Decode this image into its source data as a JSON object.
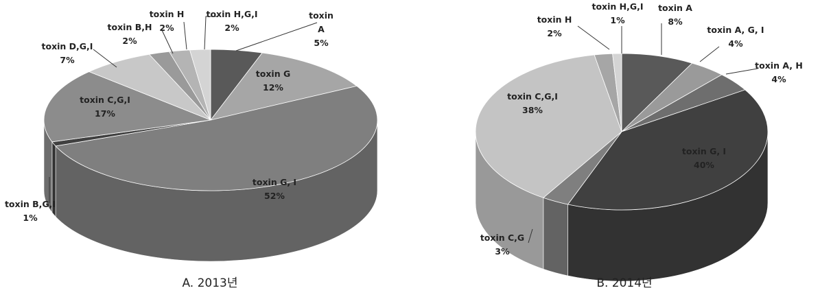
{
  "chart_data": [
    {
      "type": "pie",
      "caption": "A. 2013년",
      "slices": [
        {
          "label": "toxin A",
          "label_lines": [
            "toxin",
            "A"
          ],
          "pct_text": "5%",
          "value": 5,
          "color": "#595959"
        },
        {
          "label": "toxin G",
          "label_lines": [
            "toxin G"
          ],
          "pct_text": "12%",
          "value": 12,
          "color": "#a6a6a6"
        },
        {
          "label": "toxin G, I",
          "label_lines": [
            "toxin G, I"
          ],
          "pct_text": "52%",
          "value": 52,
          "color": "#7f7f7f"
        },
        {
          "label": "toxin B,G,I",
          "label_lines": [
            "toxin B,G,I"
          ],
          "pct_text": "1%",
          "value": 1,
          "color": "#404040"
        },
        {
          "label": "toxin C,G,I",
          "label_lines": [
            "toxin C,G,I"
          ],
          "pct_text": "17%",
          "value": 17,
          "color": "#8c8c8c"
        },
        {
          "label": "toxin D,G,I",
          "label_lines": [
            "toxin D,G,I"
          ],
          "pct_text": "7%",
          "value": 7,
          "color": "#c8c8c8"
        },
        {
          "label": "toxin B,H",
          "label_lines": [
            "toxin B,H"
          ],
          "pct_text": "2%",
          "value": 2,
          "color": "#9a9a9a"
        },
        {
          "label": "toxin H",
          "label_lines": [
            "toxin H"
          ],
          "pct_text": "2%",
          "value": 2,
          "color": "#b4b4b4"
        },
        {
          "label": "toxin H,G,I",
          "label_lines": [
            "toxin H,G,I"
          ],
          "pct_text": "2%",
          "value": 2,
          "color": "#d4d4d4"
        }
      ]
    },
    {
      "type": "pie",
      "caption": "B. 2014년",
      "slices": [
        {
          "label": "toxin A",
          "label_lines": [
            "toxin A"
          ],
          "pct_text": "8%",
          "value": 8,
          "color": "#595959"
        },
        {
          "label": "toxin A, G, I",
          "label_lines": [
            "toxin A, G, I"
          ],
          "pct_text": "4%",
          "value": 4,
          "color": "#9a9a9a"
        },
        {
          "label": "toxin A, H",
          "label_lines": [
            "toxin A, H"
          ],
          "pct_text": "4%",
          "value": 4,
          "color": "#6e6e6e"
        },
        {
          "label": "toxin G, I",
          "label_lines": [
            "toxin G, I"
          ],
          "pct_text": "40%",
          "value": 40,
          "color": "#404040"
        },
        {
          "label": "toxin C,G",
          "label_lines": [
            "toxin C,G"
          ],
          "pct_text": "3%",
          "value": 3,
          "color": "#7f7f7f"
        },
        {
          "label": "toxin C,G,I",
          "label_lines": [
            "toxin C,G,I"
          ],
          "pct_text": "38%",
          "value": 38,
          "color": "#c4c4c4"
        },
        {
          "label": "toxin H",
          "label_lines": [
            "toxin H"
          ],
          "pct_text": "2%",
          "value": 2,
          "color": "#a6a6a6"
        },
        {
          "label": "toxin H,G,I",
          "label_lines": [
            "toxin H,G,I"
          ],
          "pct_text": "1%",
          "value": 1,
          "color": "#d4d4d4"
        }
      ]
    }
  ]
}
